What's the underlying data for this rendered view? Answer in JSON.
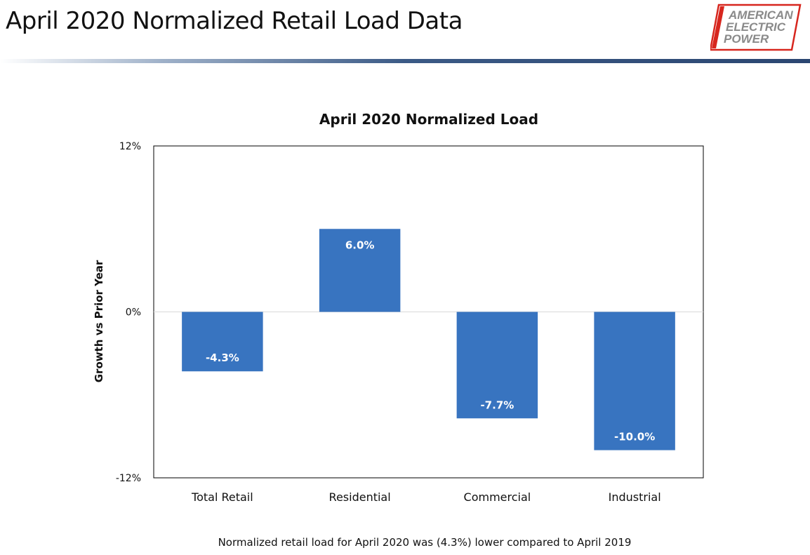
{
  "header": {
    "title": "April 2020 Normalized Retail Load Data",
    "logo_lines": [
      "AMERICAN",
      "ELECTRIC",
      "POWER"
    ],
    "logo_color": "#d7261e"
  },
  "chart_data": {
    "type": "bar",
    "title": "April 2020 Normalized Load",
    "xlabel": "",
    "ylabel": "Growth vs Prior Year",
    "categories": [
      "Total Retail",
      "Residential",
      "Commercial",
      "Industrial"
    ],
    "values": [
      -4.3,
      6.0,
      -7.7,
      -10.0
    ],
    "data_labels": [
      "-4.3%",
      "6.0%",
      "-7.7%",
      "-10.0%"
    ],
    "ylim": [
      -12,
      12
    ],
    "yticks": [
      12,
      0,
      -12
    ],
    "ytick_labels": [
      "12%",
      "0%",
      "-12%"
    ],
    "bar_color": "#3874c0",
    "grid": false,
    "legend": "none"
  },
  "footnote": "Normalized retail load for April 2020 was (4.3%) lower compared to April 2019"
}
